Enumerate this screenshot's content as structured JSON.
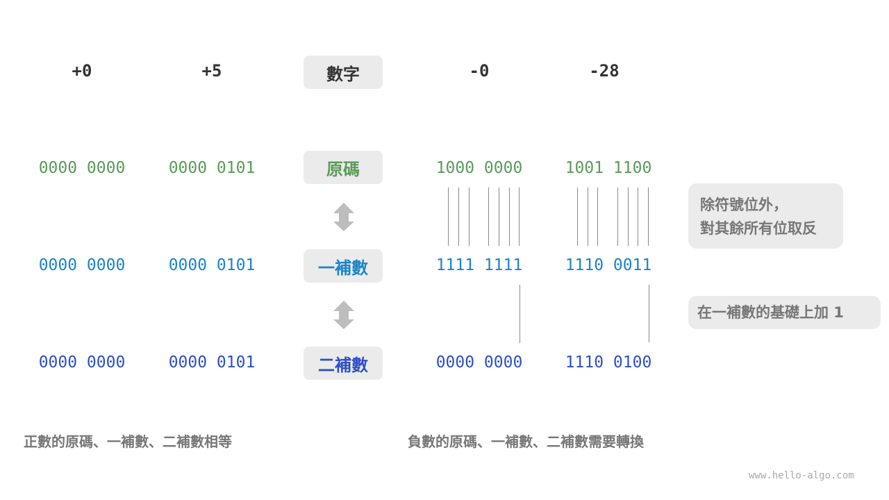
{
  "columns": [
    "+0",
    "+5",
    "-0",
    "-28"
  ],
  "row_labels": {
    "number": "數字",
    "sign_magnitude": "原碼",
    "ones_complement": "一補數",
    "twos_complement": "二補數"
  },
  "sign_magnitude": [
    "0000 0000",
    "0000 0101",
    "1000 0000",
    "1001 1100"
  ],
  "ones_complement": [
    "0000 0000",
    "0000 0101",
    "1111 1111",
    "1110 0011"
  ],
  "twos_complement": [
    "0000 0000",
    "0000 0101",
    "0000 0000",
    "1110 0100"
  ],
  "notes": {
    "invert_line1": "除符號位外，",
    "invert_line2": "對其餘所有位取反",
    "add_one": "在一補數的基礎上加 1"
  },
  "captions": {
    "positive": "正數的原碼、一補數、二補數相等",
    "negative": "負數的原碼、一補數、二補數需要轉換"
  },
  "watermark": "www.hello-algo.com",
  "colors": {
    "sign_magnitude": "#5a9a5a",
    "ones_complement": "#1a84c8",
    "twos_complement": "#2d4fc8"
  }
}
